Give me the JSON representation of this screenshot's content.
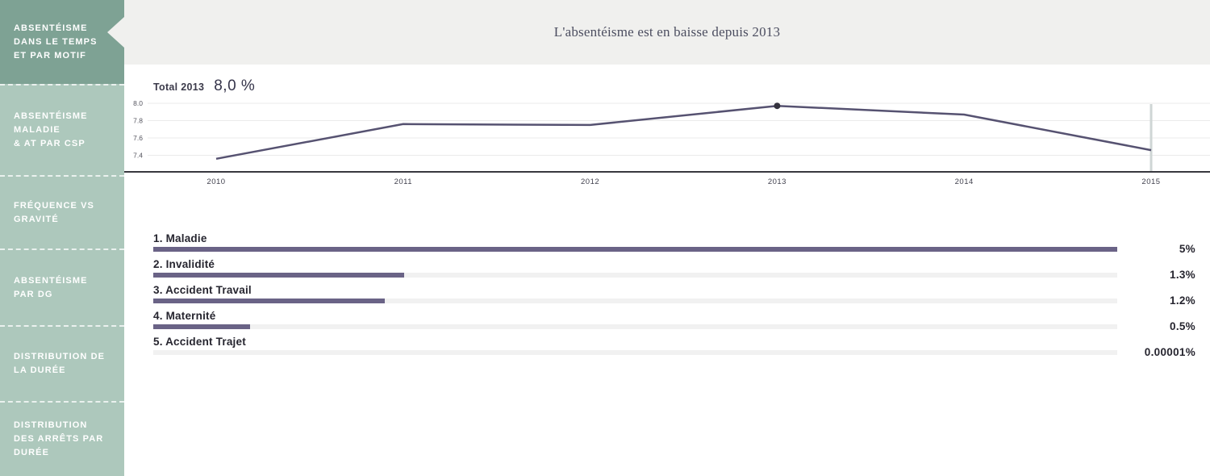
{
  "sidebar": {
    "items": [
      {
        "label": "Absentéisme dans le temps et par motif",
        "lines": [
          "ABSENTÉISME",
          "DANS LE TEMPS",
          "ET PAR MOTIF"
        ],
        "active": true
      },
      {
        "label": "Absentéisme maladie & AT par CSP",
        "lines": [
          "ABSENTÉISME",
          "MALADIE",
          "& AT PAR CSP"
        ],
        "active": false
      },
      {
        "label": "Fréquence vs gravité",
        "lines": [
          "FRÉQUENCE VS",
          "GRAVITÉ"
        ],
        "active": false
      },
      {
        "label": "Absentéisme par DG",
        "lines": [
          "ABSENTÉISME",
          "PAR DG"
        ],
        "active": false
      },
      {
        "label": "Distribution de la durée",
        "lines": [
          "DISTRIBUTION DE",
          "LA DURÉE"
        ],
        "active": false
      },
      {
        "label": "Distribution des arrêts par durée",
        "lines": [
          "DISTRIBUTION",
          "DES ARRÊTS PAR",
          "DURÉE"
        ],
        "active": false
      }
    ]
  },
  "header": {
    "title": "L'absentéisme est en baisse depuis 2013"
  },
  "trend": {
    "total_label": "Total 2013",
    "total_value": "8,0 %"
  },
  "chart_data": [
    {
      "type": "line",
      "title": "L'absentéisme est en baisse depuis 2013",
      "x": [
        2010,
        2011,
        2012,
        2013,
        2014,
        2015
      ],
      "y": [
        7.36,
        7.76,
        7.75,
        7.97,
        7.87,
        7.46
      ],
      "y_ticks": [
        8.0,
        7.8,
        7.6,
        7.4
      ],
      "ylim": [
        7.3,
        8.05
      ],
      "xlabel": "",
      "ylabel": "",
      "highlight_x": 2013,
      "highlight_label": "Total 2013 : 8,0 %",
      "reference_line_x": 2015,
      "grid": true,
      "line_color": "#565271",
      "marker_color": "#34323e"
    },
    {
      "type": "bar",
      "title": "Motifs d'absence",
      "categories": [
        "1. Maladie",
        "2. Invalidité",
        "3. Accident Travail",
        "4. Maternité",
        "5. Accident Trajet"
      ],
      "values": [
        5,
        1.3,
        1.2,
        0.5,
        1e-05
      ],
      "value_labels": [
        "5%",
        "1.3%",
        "1.2%",
        "0.5%",
        "0.00001%"
      ],
      "max": 5,
      "bar_color": "#6a6386",
      "track_color": "#f1f1f1"
    }
  ],
  "colors": {
    "sidebar_active": "#7ea294",
    "sidebar_inactive": "#adc8bc",
    "header_bg": "#f0f0ee",
    "line": "#565271",
    "bar": "#6a6386"
  }
}
